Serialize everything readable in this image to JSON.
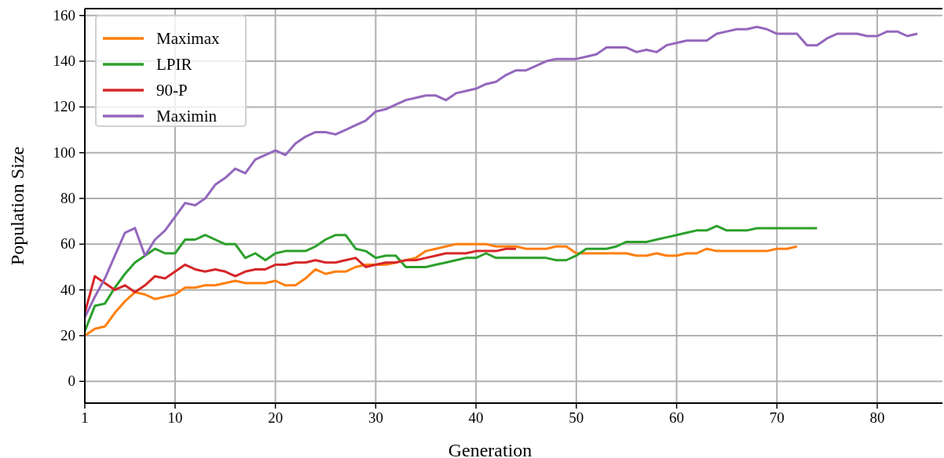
{
  "chart_data": {
    "type": "line",
    "xlabel": "Generation",
    "ylabel": "Population Size",
    "x": [
      1,
      2,
      3,
      4,
      5,
      6,
      7,
      8,
      9,
      10,
      11,
      12,
      13,
      14,
      15,
      16,
      17,
      18,
      19,
      20,
      21,
      22,
      23,
      24,
      25,
      26,
      27,
      28,
      29,
      30,
      31,
      32,
      33,
      34,
      35,
      36,
      37,
      38,
      39,
      40,
      41,
      42,
      43,
      44,
      45,
      46,
      47,
      48,
      49,
      50,
      51,
      52,
      53,
      54,
      55,
      56,
      57,
      58,
      59,
      60,
      61,
      62,
      63,
      64,
      65,
      66,
      67,
      68,
      69,
      70,
      71,
      72,
      73,
      74,
      75,
      76,
      77,
      78,
      79,
      80,
      81,
      82,
      83,
      84
    ],
    "series": [
      {
        "name": "Maximax",
        "color": "#ff7f0e",
        "values": [
          20,
          23,
          24,
          30,
          35,
          39,
          38,
          36,
          37,
          38,
          41,
          41,
          42,
          42,
          43,
          44,
          43,
          43,
          43,
          44,
          42,
          42,
          45,
          49,
          47,
          48,
          48,
          50,
          51,
          51,
          51,
          52,
          53,
          54,
          57,
          58,
          59,
          60,
          60,
          60,
          60,
          59,
          59,
          59,
          58,
          58,
          58,
          59,
          59,
          56,
          56,
          56,
          56,
          56,
          56,
          55,
          55,
          56,
          55,
          55,
          56,
          56,
          58,
          57,
          57,
          57,
          57,
          57,
          57,
          58,
          58,
          59,
          null,
          null,
          null,
          null,
          null,
          null,
          null,
          null,
          null,
          null,
          null,
          null
        ]
      },
      {
        "name": "LPIR",
        "color": "#2ca02c",
        "values": [
          22,
          33,
          34,
          41,
          47,
          52,
          55,
          58,
          56,
          56,
          62,
          62,
          64,
          62,
          60,
          60,
          54,
          56,
          53,
          56,
          57,
          57,
          57,
          59,
          62,
          64,
          64,
          58,
          57,
          54,
          55,
          55,
          50,
          50,
          50,
          51,
          52,
          53,
          54,
          54,
          56,
          54,
          54,
          54,
          54,
          54,
          54,
          53,
          53,
          55,
          58,
          58,
          58,
          59,
          61,
          61,
          61,
          62,
          63,
          64,
          65,
          66,
          66,
          68,
          66,
          66,
          66,
          67,
          67,
          67,
          67,
          67,
          67,
          67,
          null,
          null,
          null,
          null,
          null,
          null,
          null,
          null,
          null,
          null
        ]
      },
      {
        "name": "90-P",
        "color": "#d62728",
        "values": [
          30,
          46,
          43,
          40,
          42,
          39,
          42,
          46,
          45,
          48,
          51,
          49,
          48,
          49,
          48,
          46,
          48,
          49,
          49,
          51,
          51,
          52,
          52,
          53,
          52,
          52,
          53,
          54,
          50,
          51,
          52,
          52,
          53,
          53,
          54,
          55,
          56,
          56,
          56,
          57,
          57,
          57,
          58,
          58,
          null,
          null,
          null,
          null,
          null,
          null,
          null,
          null,
          null,
          null,
          null,
          null,
          null,
          null,
          null,
          null,
          null,
          null,
          null,
          null,
          null,
          null,
          null,
          null,
          null,
          null,
          null,
          null,
          null,
          null,
          null,
          null,
          null,
          null,
          null,
          null,
          null,
          null,
          null,
          null
        ]
      },
      {
        "name": "Maximin",
        "color": "#9467bd",
        "values": [
          28,
          37,
          45,
          55,
          65,
          67,
          55,
          62,
          66,
          72,
          78,
          77,
          80,
          86,
          89,
          93,
          91,
          97,
          99,
          101,
          99,
          104,
          107,
          109,
          109,
          108,
          110,
          112,
          114,
          118,
          119,
          121,
          123,
          124,
          125,
          125,
          123,
          126,
          127,
          128,
          130,
          131,
          134,
          136,
          136,
          138,
          140,
          141,
          141,
          141,
          142,
          143,
          146,
          146,
          146,
          144,
          145,
          144,
          147,
          148,
          149,
          149,
          149,
          152,
          153,
          154,
          154,
          155,
          154,
          152,
          152,
          152,
          147,
          147,
          150,
          152,
          152,
          152,
          151,
          151,
          153,
          153,
          151,
          152
        ]
      }
    ],
    "xlim": [
      1,
      86.5
    ],
    "xticks": [
      1,
      10,
      20,
      30,
      40,
      50,
      60,
      70,
      80
    ],
    "ylim": [
      -9.5,
      163
    ],
    "yticks": [
      0,
      20,
      40,
      60,
      80,
      100,
      120,
      140,
      160
    ],
    "grid": true,
    "legend": "top left"
  }
}
